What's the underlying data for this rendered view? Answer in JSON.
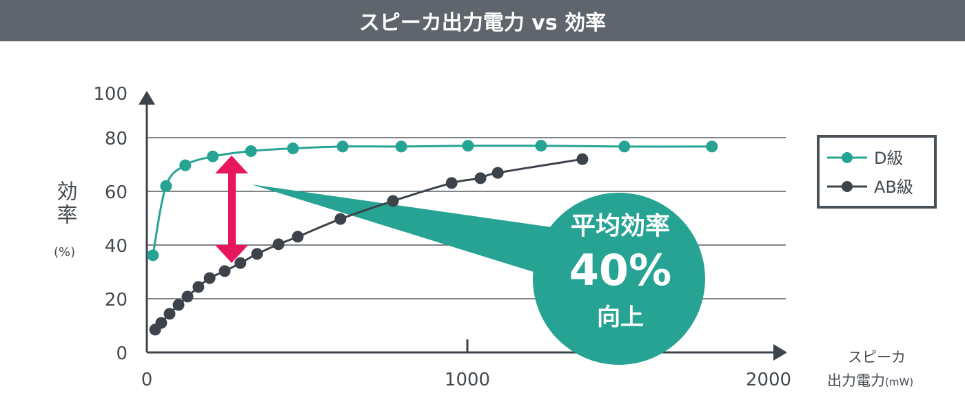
{
  "chart_data": {
    "type": "line",
    "title": "スピーカ出力電力 vs 効率",
    "xlabel_line1": "スピーカ",
    "xlabel_line2": "出力電力",
    "xlabel_unit": "(mW)",
    "ylabel": "効率",
    "ylabel_unit": "(%)",
    "xlim": [
      0,
      2000
    ],
    "ylim": [
      0,
      100
    ],
    "xticks": [
      "0",
      "1000",
      "2000"
    ],
    "yticks": [
      "0",
      "20",
      "40",
      "60",
      "80",
      "100"
    ],
    "grid": "horizontal",
    "legend_position": "right",
    "series": [
      {
        "name": "D級",
        "color": "#26a393",
        "x": [
          19,
          60,
          120,
          206,
          325,
          456,
          611,
          794,
          1002,
          1230,
          1490,
          1763
        ],
        "y": [
          36.2,
          62,
          69.7,
          73,
          75,
          76,
          76.7,
          76.7,
          77,
          77,
          76.7,
          76.7
        ]
      },
      {
        "name": "AB級",
        "color": "#3d434a",
        "x": [
          26,
          45,
          71,
          99,
          127,
          161,
          196,
          243,
          292,
          344,
          411,
          471,
          604,
          768,
          951,
          1041,
          1095,
          1359
        ],
        "y": [
          8.5,
          11,
          14.4,
          17.7,
          20.8,
          24.4,
          27.7,
          30.3,
          33.3,
          36.7,
          40.3,
          43.1,
          49.7,
          56.4,
          63.1,
          64.9,
          66.9,
          72
        ]
      }
    ],
    "annotation": {
      "line1": "平均効率",
      "line2": "40%",
      "line3": "向上",
      "color": "#26a393",
      "arrow_color": "#e8175d"
    }
  }
}
